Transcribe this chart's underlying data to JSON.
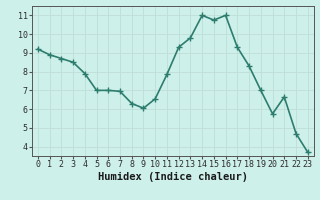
{
  "x": [
    0,
    1,
    2,
    3,
    4,
    5,
    6,
    7,
    8,
    9,
    10,
    11,
    12,
    13,
    14,
    15,
    16,
    17,
    18,
    19,
    20,
    21,
    22,
    23
  ],
  "y": [
    9.2,
    8.9,
    8.7,
    8.5,
    7.9,
    7.0,
    7.0,
    6.95,
    6.3,
    6.05,
    6.55,
    7.85,
    9.3,
    9.8,
    11.0,
    10.75,
    11.0,
    9.3,
    8.3,
    7.0,
    5.75,
    6.65,
    4.7,
    3.7
  ],
  "xlabel": "Humidex (Indice chaleur)",
  "xlim": [
    -0.5,
    23.5
  ],
  "ylim": [
    3.5,
    11.5
  ],
  "yticks": [
    4,
    5,
    6,
    7,
    8,
    9,
    10,
    11
  ],
  "xticks": [
    0,
    1,
    2,
    3,
    4,
    5,
    6,
    7,
    8,
    9,
    10,
    11,
    12,
    13,
    14,
    15,
    16,
    17,
    18,
    19,
    20,
    21,
    22,
    23
  ],
  "line_color": "#2d7d6e",
  "marker": "+",
  "marker_size": 4,
  "bg_color": "#cef0ea",
  "grid_color": "#c0ddd8",
  "tick_fontsize": 6,
  "xlabel_fontsize": 7.5,
  "line_width": 1.2
}
